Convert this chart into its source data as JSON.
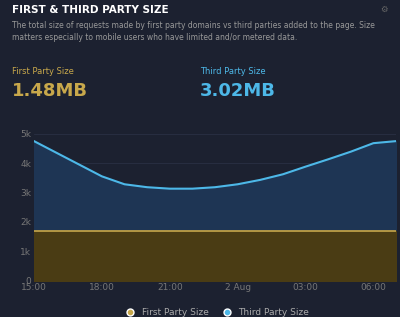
{
  "background_color": "#1c2130",
  "plot_bg_color": "#1c2130",
  "title": "FIRST & THIRD PARTY SIZE",
  "subtitle": "The total size of requests made by first party domains vs third parties added to the page. Size\nmatters especially to mobile users who have limited and/or metered data.",
  "first_party_label": "First Party Size",
  "first_party_value": "1.48MB",
  "third_party_label": "Third Party Size",
  "third_party_value": "3.02MB",
  "title_color": "#ffffff",
  "subtitle_color": "#999999",
  "first_party_label_color": "#c8a84b",
  "first_party_value_color": "#c8a84b",
  "third_party_label_color": "#4db8e8",
  "third_party_value_color": "#4db8e8",
  "x_ticks": [
    "15:00",
    "18:00",
    "21:00",
    "2 Aug",
    "03:00",
    "06:00"
  ],
  "x_tick_positions": [
    0,
    3,
    6,
    9,
    12,
    15
  ],
  "y_ticks": [
    "0",
    "1k",
    "2k",
    "3k",
    "4k",
    "5k"
  ],
  "y_tick_values": [
    0,
    1000,
    2000,
    3000,
    4000,
    5000
  ],
  "ylim": [
    0,
    5400
  ],
  "first_party_y": [
    1700,
    1700,
    1700,
    1700,
    1700,
    1700,
    1700,
    1700,
    1700,
    1700,
    1700,
    1700,
    1700,
    1700,
    1700,
    1700,
    1700
  ],
  "third_party_y": [
    4750,
    4350,
    3950,
    3550,
    3280,
    3180,
    3130,
    3130,
    3180,
    3280,
    3430,
    3620,
    3880,
    4130,
    4390,
    4680,
    4750
  ],
  "first_party_line_color": "#c8a84b",
  "third_party_line_color": "#4db8e8",
  "first_party_fill_color": "#4a3c14",
  "third_party_fill_color": "#1e3554",
  "grid_color": "#2d3347",
  "tick_color": "#777777",
  "legend_dot_first": "#c8a84b",
  "legend_dot_third": "#4db8e8",
  "legend_text_color": "#aaaaaa"
}
